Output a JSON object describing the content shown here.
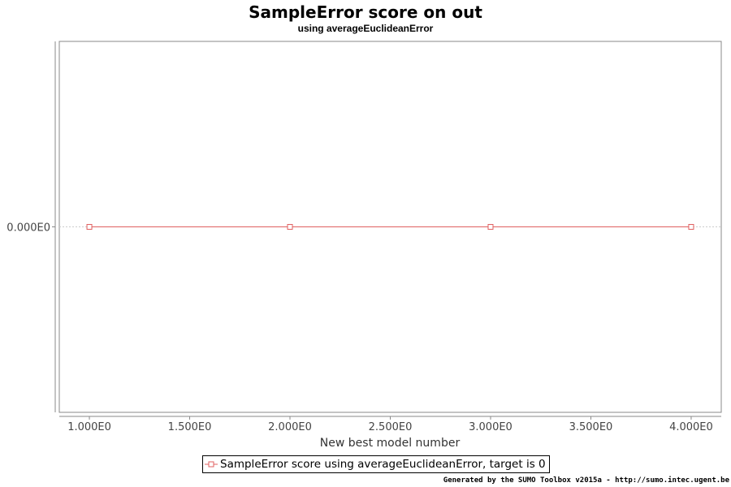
{
  "chart_data": {
    "type": "line",
    "title": "SampleError score on out",
    "subtitle": "using averageEuclideanError",
    "xlabel": "New best model number",
    "ylabel": "",
    "x": [
      1,
      2,
      3,
      4
    ],
    "series": [
      {
        "name": "SampleError score using averageEuclideanError, target is 0",
        "values": [
          0,
          0,
          0,
          0
        ],
        "color": "#e06060",
        "marker": "square"
      }
    ],
    "xlim": [
      0.85,
      4.15
    ],
    "xticks": [
      1.0,
      1.5,
      2.0,
      2.5,
      3.0,
      3.5,
      4.0
    ],
    "xtick_labels": [
      "1.000E0",
      "1.500E0",
      "2.000E0",
      "2.500E0",
      "3.000E0",
      "3.500E0",
      "4.000E0"
    ],
    "yticks": [
      0
    ],
    "ytick_labels": [
      "0.000E0"
    ],
    "grid": true,
    "legend_position": "bottom"
  },
  "footer": "Generated by the SUMO Toolbox v2015a - http://sumo.intec.ugent.be"
}
